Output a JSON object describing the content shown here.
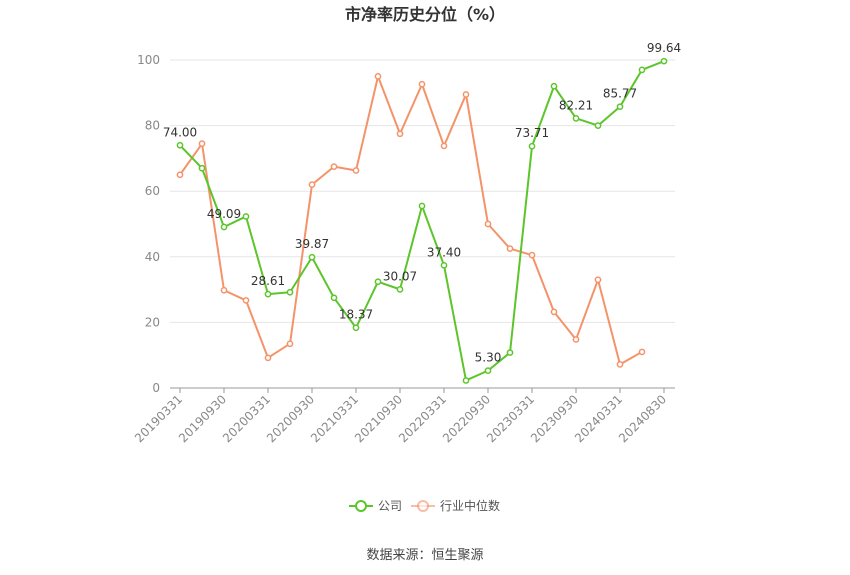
{
  "chart_data": {
    "type": "line",
    "title": "市净率历史分位（%）",
    "xlabel": "",
    "ylabel": "",
    "ylim": [
      0,
      100
    ],
    "yticks": [
      0,
      20,
      40,
      60,
      80,
      100
    ],
    "grid": true,
    "legend_position": "bottom",
    "x_tick_labels": [
      "20190331",
      "20190930",
      "20200331",
      "20200930",
      "20210331",
      "20210930",
      "20220331",
      "20220930",
      "20230331",
      "20230930",
      "20240331",
      "20240830"
    ],
    "x": [
      "20190331",
      "20190630",
      "20190930",
      "20191231",
      "20200331",
      "20200630",
      "20200930",
      "20201231",
      "20210331",
      "20210630",
      "20210930",
      "20211231",
      "20220331",
      "20220630",
      "20220930",
      "20221231",
      "20230331",
      "20230630",
      "20230930",
      "20231231",
      "20240331",
      "20240630",
      "20240830"
    ],
    "series": [
      {
        "name": "公司",
        "color": "#5cc52a",
        "values": [
          74.0,
          67.0,
          49.09,
          52.3,
          28.61,
          29.2,
          39.87,
          27.5,
          18.37,
          32.4,
          30.07,
          55.5,
          37.4,
          2.3,
          5.3,
          10.8,
          73.71,
          92.0,
          82.21,
          80.0,
          85.77,
          97.0,
          99.64
        ],
        "labels": [
          "74.00",
          "",
          "49.09",
          "",
          "28.61",
          "",
          "39.87",
          "",
          "18.37",
          "",
          "30.07",
          "",
          "37.40",
          "",
          "5.30",
          "",
          "73.71",
          "",
          "82.21",
          "",
          "85.77",
          "",
          "99.64"
        ]
      },
      {
        "name": "行业中位数",
        "color": "#f4936a",
        "values": [
          65.0,
          74.5,
          29.8,
          26.7,
          9.2,
          13.5,
          62.0,
          67.5,
          66.3,
          95.0,
          77.5,
          92.6,
          73.8,
          89.5,
          50.0,
          42.5,
          40.5,
          23.2,
          14.8,
          33.0,
          7.2,
          11.0,
          null
        ]
      }
    ]
  },
  "source": "数据来源：恒生聚源"
}
